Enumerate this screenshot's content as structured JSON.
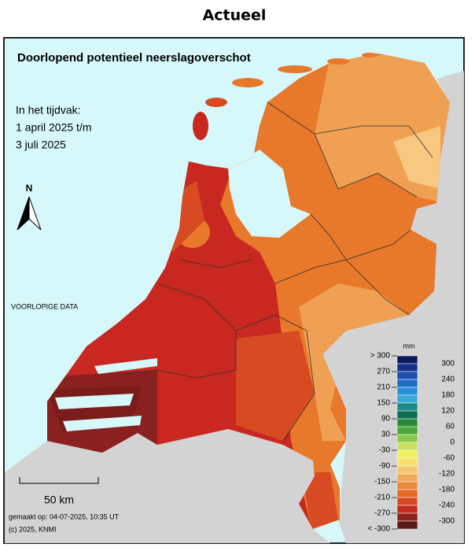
{
  "header": {
    "title": "Actueel"
  },
  "map": {
    "title": "Doorlopend potentieel neerslagoverschot",
    "period": [
      "In het tijdvak:",
      "1 april 2025 t/m",
      "3 juli 2025"
    ],
    "north": "N",
    "note": "VOORLOPIGE DATA",
    "scale": "50 km",
    "footer": [
      "gemaakt op: 04-07-2025, 10:35 UT",
      "(c) 2025, KNMI"
    ],
    "legend": {
      "unit": "mm",
      "left_labels": [
        "> 300",
        "270",
        "210",
        "150",
        "90",
        "30",
        "-30",
        "-90",
        "-150",
        "-210",
        "-270",
        "< -300"
      ],
      "right_labels": [
        "300",
        "240",
        "180",
        "120",
        "60",
        "0",
        "-60",
        "-120",
        "-180",
        "-240",
        "-300"
      ],
      "colors": [
        "#0d1b5e",
        "#15318c",
        "#1b4fb0",
        "#1e6ec8",
        "#2b8fd8",
        "#3aa9d6",
        "#1d8a8a",
        "#0f6e52",
        "#2a8a3a",
        "#4aa83a",
        "#8cc84a",
        "#c8e060",
        "#f0f060",
        "#f8e070",
        "#f5c870",
        "#f3a858",
        "#ee8a3a",
        "#e86a28",
        "#d84a22",
        "#c42a1e",
        "#8e2218",
        "#5a1a14"
      ]
    }
  }
}
